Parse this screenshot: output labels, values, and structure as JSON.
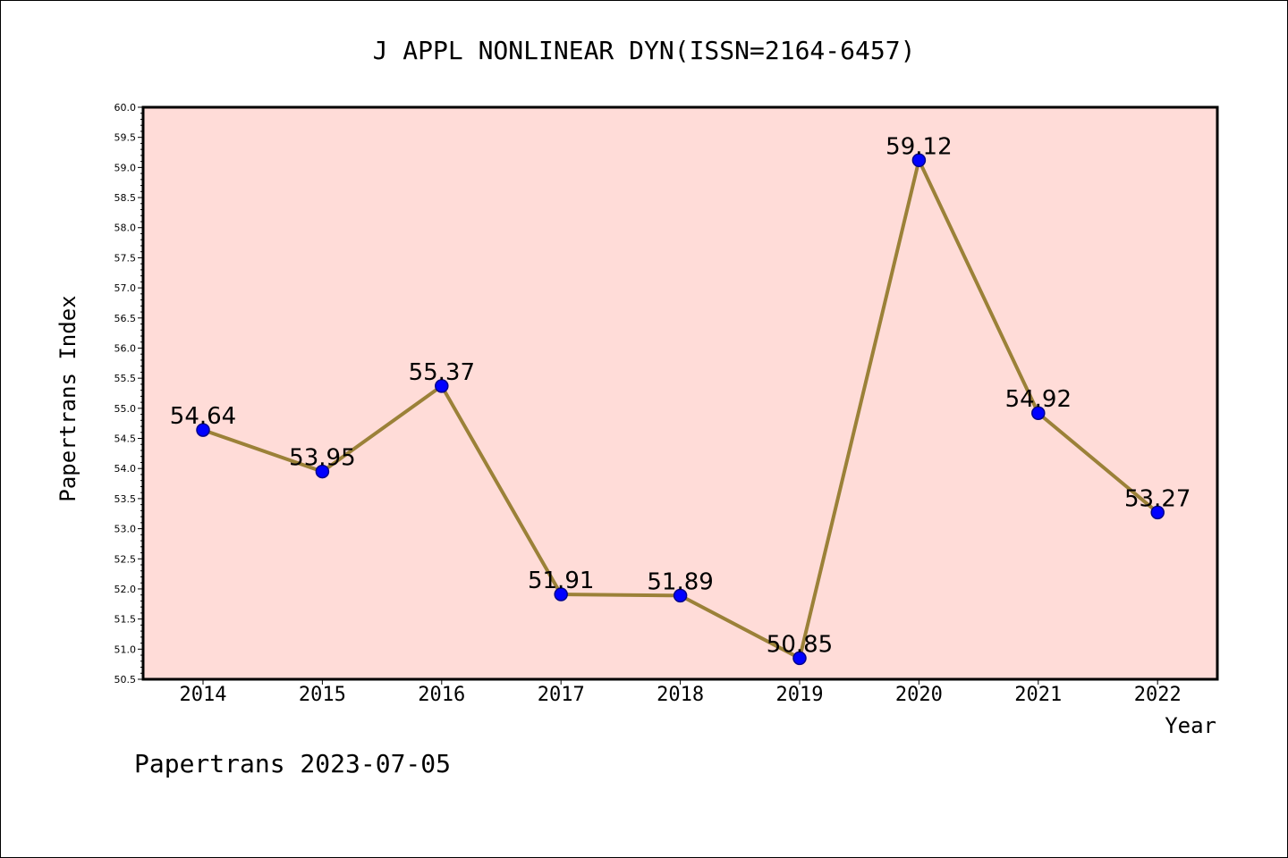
{
  "chart_data": {
    "type": "line",
    "title": "J APPL NONLINEAR DYN(ISSN=2164-6457)",
    "xlabel": "Year",
    "ylabel": "Papertrans Index",
    "categories": [
      "2014",
      "2015",
      "2016",
      "2017",
      "2018",
      "2019",
      "2020",
      "2021",
      "2022"
    ],
    "values": [
      54.64,
      53.95,
      55.37,
      51.91,
      51.89,
      50.85,
      59.12,
      54.92,
      53.27
    ],
    "data_labels": [
      "54.64",
      "53.95",
      "55.37",
      "51.91",
      "51.89",
      "50.85",
      "59.12",
      "54.92",
      "53.27"
    ],
    "ylim": [
      50.5,
      60.0
    ],
    "ytick_step": 0.5,
    "ytick_labels": [
      "50.5",
      "51.0",
      "51.5",
      "52.0",
      "52.5",
      "53.0",
      "53.5",
      "54.0",
      "54.5",
      "55.0",
      "55.5",
      "56.0",
      "56.5",
      "57.0",
      "57.5",
      "58.0",
      "58.5",
      "59.0",
      "59.5",
      "60.0"
    ],
    "grid": false,
    "colors": {
      "plot_background": "#ffdcd8",
      "line": "#9b8138",
      "marker": "#0000ff",
      "marker_edge": "#00008b"
    }
  },
  "footer": "Papertrans 2023-07-05"
}
